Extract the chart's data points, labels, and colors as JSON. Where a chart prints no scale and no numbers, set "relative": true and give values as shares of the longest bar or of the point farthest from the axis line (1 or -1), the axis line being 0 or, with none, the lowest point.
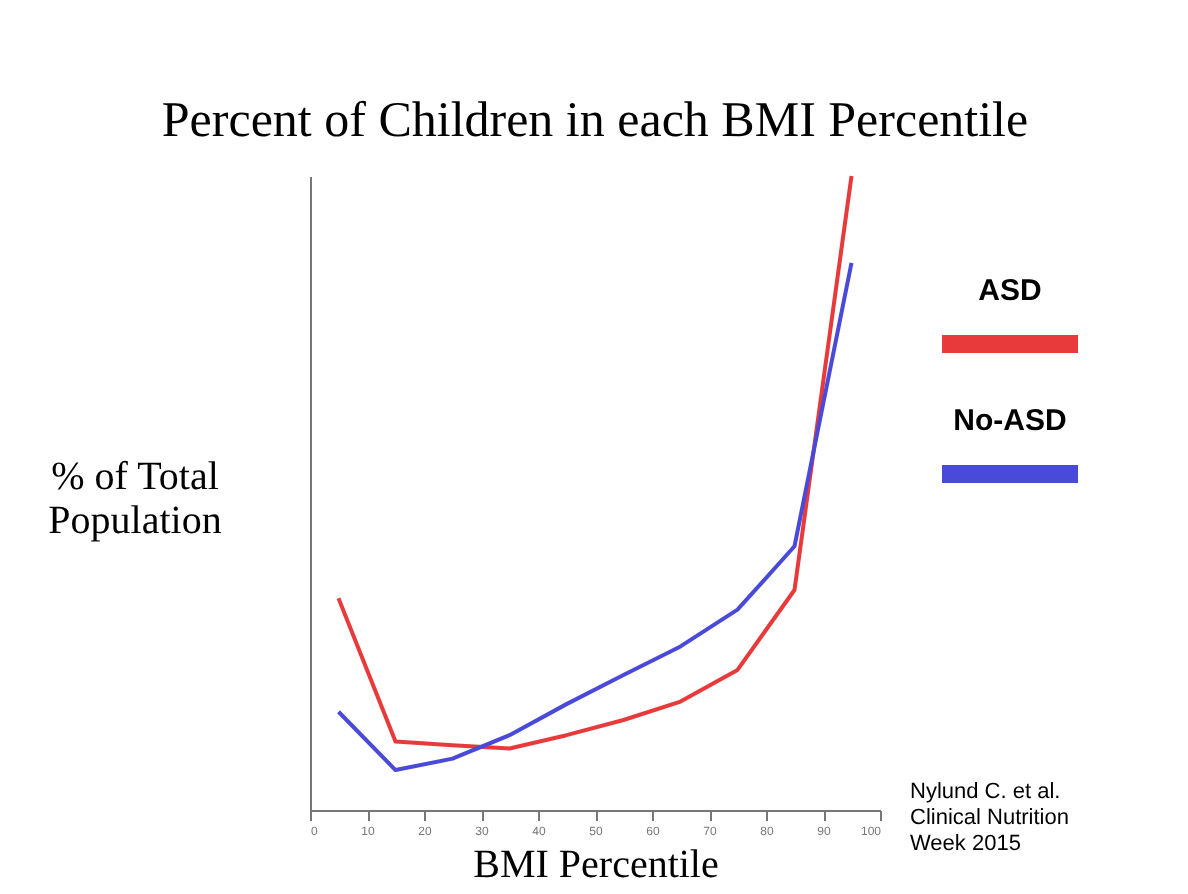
{
  "chart_data": {
    "type": "line",
    "title": "Percent of Children in each BMI Percentile",
    "xlabel": "BMI Percentile",
    "ylabel": "% of Total\nPopulation",
    "relative": true,
    "x": [
      5,
      15,
      25,
      35,
      45,
      55,
      65,
      75,
      85,
      95
    ],
    "xlim": [
      0,
      100
    ],
    "xticks": [
      0,
      10,
      20,
      30,
      40,
      50,
      60,
      70,
      80,
      90,
      100
    ],
    "series": [
      {
        "name": "ASD",
        "color": "#e83a3a",
        "values": [
          0.334,
          0.108,
          0.102,
          0.097,
          0.118,
          0.142,
          0.171,
          0.221,
          0.347,
          1.0
        ]
      },
      {
        "name": "No-ASD",
        "color": "#4a4ad8",
        "values": [
          0.155,
          0.063,
          0.081,
          0.118,
          0.167,
          0.213,
          0.258,
          0.316,
          0.416,
          0.863
        ]
      }
    ],
    "legend": "right",
    "grid": false,
    "marker": "none",
    "line_style": "solid",
    "annotations": [
      "Nylund C. et al.\nClinical Nutrition\nWeek 2015"
    ]
  }
}
